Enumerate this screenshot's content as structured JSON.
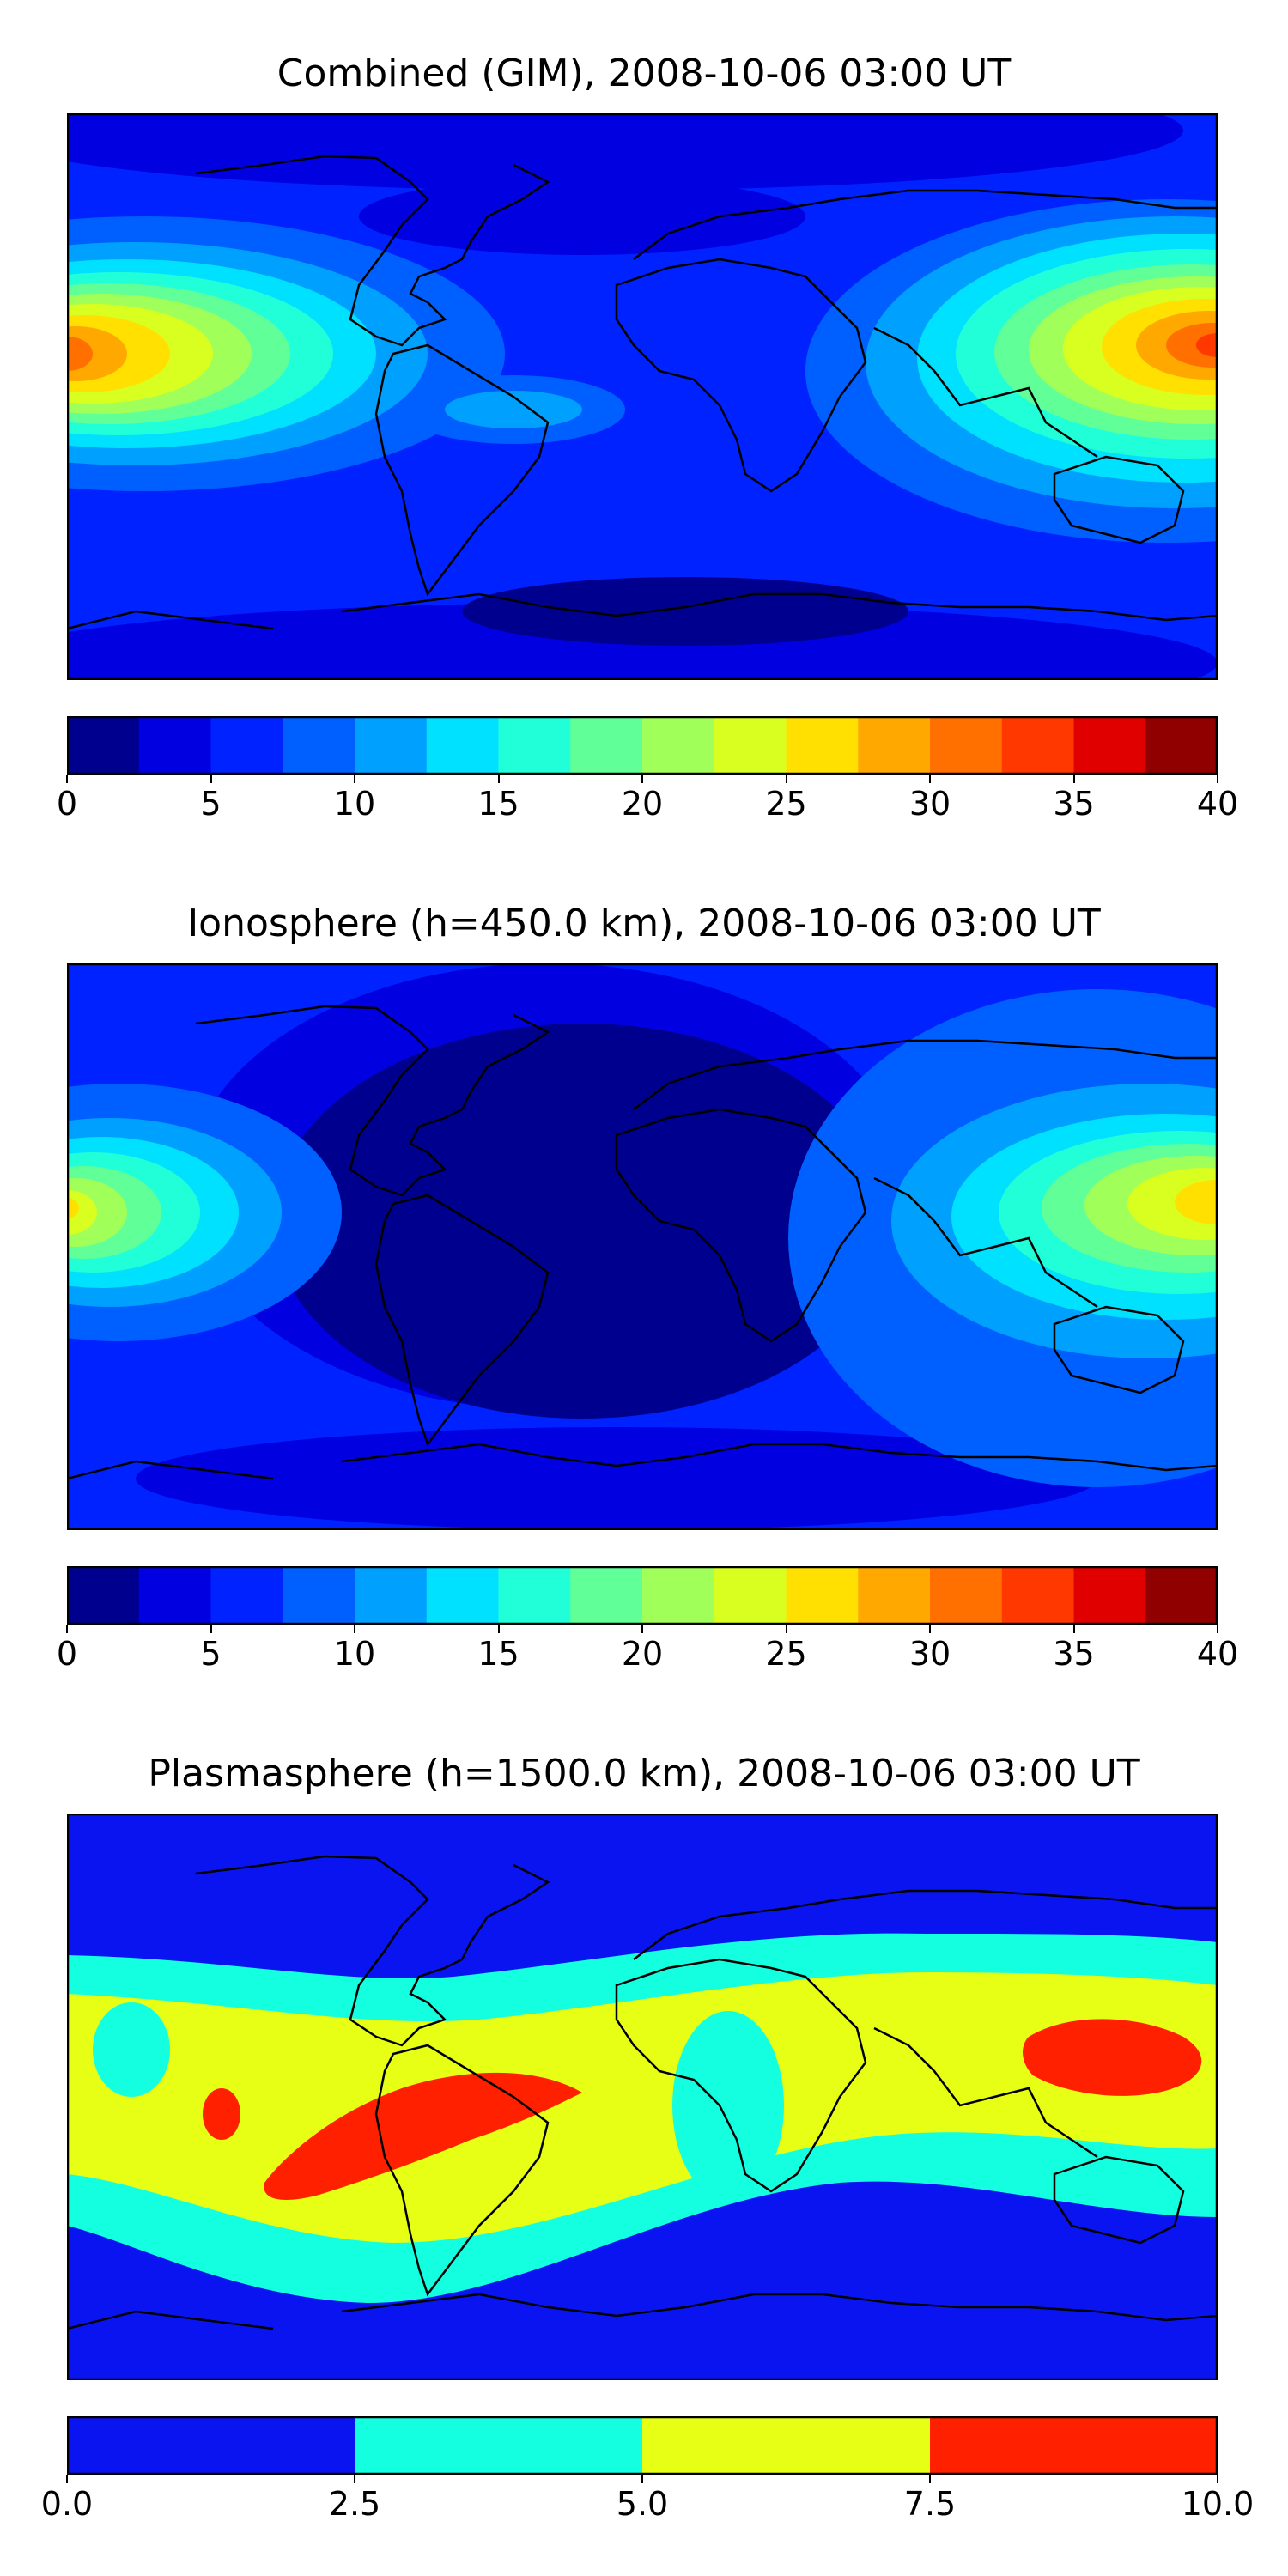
{
  "panels": [
    {
      "title": "Combined (GIM), 2008-10-06 03:00 UT",
      "colorbar": {
        "ticks": [
          "0",
          "5",
          "10",
          "15",
          "20",
          "25",
          "30",
          "35",
          "40"
        ],
        "tick_values": [
          0,
          5,
          10,
          15,
          20,
          25,
          30,
          35,
          40
        ],
        "range": [
          0,
          40
        ],
        "levels": [
          0,
          2.5,
          5,
          7.5,
          10,
          12.5,
          15,
          17.5,
          20,
          22.5,
          25,
          27.5,
          30,
          32.5,
          35,
          37.5,
          40
        ],
        "colors": [
          "#00008f",
          "#0000e0",
          "#0022ff",
          "#0060ff",
          "#00a0ff",
          "#00e0ff",
          "#20ffd8",
          "#60ff98",
          "#a0ff58",
          "#d8ff20",
          "#ffe000",
          "#ffa800",
          "#ff7000",
          "#ff3800",
          "#e00000",
          "#900000"
        ]
      }
    },
    {
      "title": "Ionosphere  (h=450.0 km), 2008-10-06 03:00 UT",
      "colorbar": {
        "ticks": [
          "0",
          "5",
          "10",
          "15",
          "20",
          "25",
          "30",
          "35",
          "40"
        ],
        "tick_values": [
          0,
          5,
          10,
          15,
          20,
          25,
          30,
          35,
          40
        ],
        "range": [
          0,
          40
        ],
        "levels": [
          0,
          2.5,
          5,
          7.5,
          10,
          12.5,
          15,
          17.5,
          20,
          22.5,
          25,
          27.5,
          30,
          32.5,
          35,
          37.5,
          40
        ],
        "colors": [
          "#00008f",
          "#0000e0",
          "#0022ff",
          "#0060ff",
          "#00a0ff",
          "#00e0ff",
          "#20ffd8",
          "#60ff98",
          "#a0ff58",
          "#d8ff20",
          "#ffe000",
          "#ffa800",
          "#ff7000",
          "#ff3800",
          "#e00000",
          "#900000"
        ]
      }
    },
    {
      "title": "Plasmasphere (h=1500.0 km), 2008-10-06 03:00 UT",
      "colorbar": {
        "ticks": [
          "0.0",
          "2.5",
          "5.0",
          "7.5",
          "10.0"
        ],
        "tick_values": [
          0,
          2.5,
          5,
          7.5,
          10
        ],
        "range": [
          0,
          10
        ],
        "levels": [
          0,
          2.5,
          5,
          7.5,
          10
        ],
        "colors": [
          "#0a14f0",
          "#14ffe0",
          "#e6ff14",
          "#ff2000"
        ]
      }
    }
  ],
  "map_colors": {
    "land_outline": "#000000",
    "combined_base": "#0022ff",
    "ionosphere_base": "#0022ff",
    "plasmasphere_base": "#0a14f0"
  }
}
